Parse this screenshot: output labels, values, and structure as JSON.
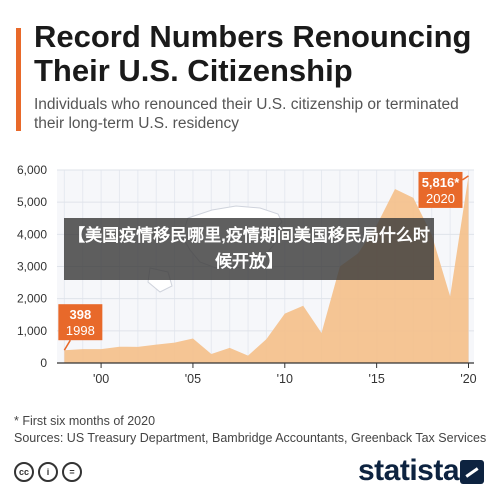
{
  "header": {
    "title": "Record Numbers Renouncing Their U.S. Citizenship",
    "subtitle": "Individuals who renounced their U.S. citizenship or terminated their long-term U.S. residency"
  },
  "overlay_banner": {
    "text": "【美国疫情移民哪里,疫情期间美国移民局什么时候开放】"
  },
  "chart_data": {
    "type": "area",
    "x": [
      1998,
      1999,
      2000,
      2001,
      2002,
      2003,
      2004,
      2005,
      2006,
      2007,
      2008,
      2009,
      2010,
      2011,
      2012,
      2013,
      2014,
      2015,
      2016,
      2017,
      2018,
      2019,
      2020
    ],
    "values": [
      398,
      430,
      431,
      506,
      503,
      571,
      635,
      762,
      278,
      470,
      231,
      742,
      1534,
      1781,
      932,
      2999,
      3415,
      4279,
      5411,
      5133,
      3983,
      2072,
      5816
    ],
    "xticks": [
      2000,
      2005,
      2010,
      2015,
      2020
    ],
    "xtick_labels": [
      "'00",
      "'05",
      "'10",
      "'15",
      "'20"
    ],
    "ylim": [
      0,
      6000
    ],
    "yticks": [
      0,
      1000,
      2000,
      3000,
      4000,
      5000,
      6000
    ],
    "ytick_labels": [
      "0",
      "1,000",
      "2,000",
      "3,000",
      "4,000",
      "5,000",
      "6,000"
    ],
    "grid": true,
    "annotations": [
      {
        "value_label": "398",
        "year_label": "1998",
        "x": 1998,
        "y": 398
      },
      {
        "value_label": "5,816*",
        "year_label": "2020",
        "x": 2020,
        "y": 5816
      }
    ],
    "colors": {
      "area": "#f4c08b",
      "annotation": "#e8692a",
      "grid": "#e6e9f0"
    }
  },
  "footer": {
    "note": "* First six months of 2020",
    "sources": "Sources: US Treasury Department, Bambridge Accountants, Greenback Tax Services",
    "license_icons": [
      "cc-icon",
      "info-icon",
      "equals-icon"
    ],
    "brand": "statista"
  }
}
